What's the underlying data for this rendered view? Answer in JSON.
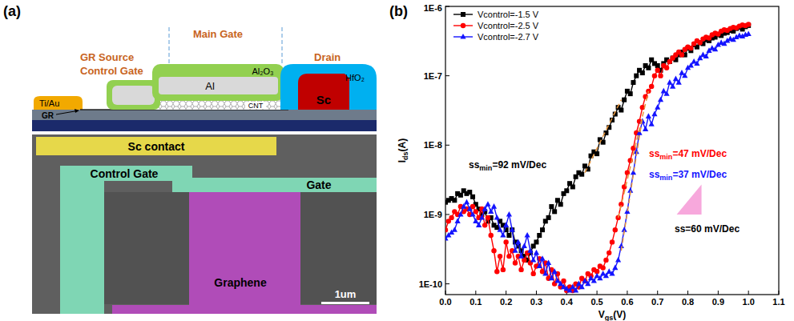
{
  "panel_a": {
    "label": "(a)",
    "schematic": {
      "main_gate": "Main Gate",
      "source_label": [
        "GR Source",
        "Control Gate"
      ],
      "drain": "Drain",
      "oxide": "Al₂O₃",
      "gate_metal": "Al",
      "channel": "CNT",
      "drain_oxide": "HfO₂",
      "drain_metal": "Sc",
      "source_metal": "Ti/Au",
      "graphene": "GR"
    },
    "sem": {
      "sc_contact": "Sc contact",
      "control_gate": "Control Gate",
      "gate": "Gate",
      "graphene": "Graphene",
      "scale_bar": "1um"
    }
  },
  "chart_data": {
    "type": "line",
    "panel_label": "(b)",
    "log": "y",
    "grid": false,
    "legend": "upper left",
    "x_label": [
      "V",
      "gs",
      "(V)"
    ],
    "y_label": [
      "I",
      "ds",
      "(A)"
    ],
    "xlim": [
      0,
      1.1
    ],
    "xticks": [
      {
        "value": 0,
        "label": "0.0"
      },
      0.1,
      0.2,
      0.3,
      0.4,
      0.5,
      0.6,
      0.7,
      0.8,
      0.9,
      {
        "value": 1,
        "label": "1.0"
      },
      1.1
    ],
    "ylim": [
      7e-11,
      1e-06
    ],
    "yticks": [
      {
        "value": 1e-10,
        "label": "1E-10"
      },
      {
        "value": 1e-09,
        "label": "1E-9"
      },
      {
        "value": 1e-08,
        "label": "1E-8"
      },
      {
        "value": 1e-07,
        "label": "1E-7"
      },
      {
        "value": 1e-06,
        "label": "1E-6"
      }
    ],
    "x": [
      0,
      0.01,
      0.02,
      0.03,
      0.04,
      0.05,
      0.06,
      0.07,
      0.08,
      0.09,
      0.1,
      0.11,
      0.12,
      0.13,
      0.14,
      0.15,
      0.16,
      0.17,
      0.18,
      0.19,
      0.2,
      0.21,
      0.22,
      0.23,
      0.24,
      0.25,
      0.26,
      0.27,
      0.28,
      0.29,
      0.3,
      0.31,
      0.32,
      0.33,
      0.34,
      0.35,
      0.36,
      0.37,
      0.38,
      0.39,
      0.4,
      0.41,
      0.42,
      0.43,
      0.44,
      0.45,
      0.46,
      0.47,
      0.48,
      0.49,
      0.5,
      0.51,
      0.52,
      0.53,
      0.54,
      0.55,
      0.56,
      0.57,
      0.58,
      0.59,
      0.6,
      0.61,
      0.62,
      0.63,
      0.64,
      0.65,
      0.66,
      0.67,
      0.68,
      0.69,
      0.7,
      0.71,
      0.72,
      0.73,
      0.74,
      0.75,
      0.76,
      0.77,
      0.78,
      0.79,
      0.8,
      0.81,
      0.82,
      0.83,
      0.84,
      0.85,
      0.86,
      0.87,
      0.88,
      0.89,
      0.9,
      0.91,
      0.92,
      0.93,
      0.94,
      0.95,
      0.96,
      0.97,
      0.98,
      0.99,
      1
    ],
    "series": [
      {
        "name": "Vcontrol=-1.5 V",
        "color": "#000000",
        "marker": "square",
        "line_style": "solid",
        "values": [
          1.5e-09,
          1.6e-09,
          1.7e-09,
          1.6e-09,
          2e-09,
          1.9e-09,
          2.2e-09,
          2e-09,
          2.1e-09,
          1.8e-09,
          1.4e-09,
          1.2e-09,
          1e-09,
          1.1e-09,
          8e-10,
          9e-10,
          7e-10,
          6.5e-10,
          8e-10,
          7e-10,
          6e-10,
          5e-10,
          6e-10,
          4e-10,
          3.5e-10,
          3e-10,
          2.5e-10,
          2.2e-10,
          2.8e-10,
          3.5e-10,
          4e-10,
          5e-10,
          6e-10,
          8e-10,
          9e-10,
          1.3e-09,
          1.1e-09,
          1.6e-09,
          1.4e-09,
          2e-09,
          2.2e-09,
          2.8e-09,
          2.5e-09,
          3.5e-09,
          4e-09,
          3.8e-09,
          5e-09,
          4.5e-09,
          7e-09,
          8e-09,
          7.5e-09,
          1.2e-08,
          1.1e-08,
          1.5e-08,
          1.8e-08,
          2.3e-08,
          2.8e-08,
          3.5e-08,
          3.2e-08,
          4.5e-08,
          6e-08,
          5.5e-08,
          8e-08,
          1e-07,
          1.2e-07,
          1.1e-07,
          1.4e-07,
          1.3e-07,
          1.7e-07,
          1.5e-07,
          1.4e-07,
          1.2e-07,
          1.5e-07,
          1.7e-07,
          1.6e-07,
          1.8e-07,
          1.7e-07,
          2e-07,
          2.2e-07,
          2e-07,
          2.5e-07,
          2.3e-07,
          2.8e-07,
          2.6e-07,
          3e-07,
          2.9e-07,
          3.3e-07,
          3.2e-07,
          3.5e-07,
          3.6e-07,
          3.9e-07,
          3.8e-07,
          4.1e-07,
          4.2e-07,
          4.5e-07,
          4.4e-07,
          4.8e-07,
          5e-07,
          4.7e-07,
          5.1e-07,
          5.3e-07
        ]
      },
      {
        "name": "Vcontrol=-2.5 V",
        "color": "#ff0000",
        "marker": "circle",
        "line_style": "solid",
        "values": [
          6e-10,
          8e-10,
          9e-10,
          1.1e-09,
          1e-09,
          1.3e-09,
          1.1e-09,
          1.2e-09,
          1e-09,
          1.3e-09,
          1.1e-09,
          9e-10,
          1.2e-09,
          7e-10,
          9e-10,
          5e-10,
          3e-10,
          1.5e-10,
          2.5e-10,
          1.6e-10,
          4e-10,
          2.5e-10,
          3e-10,
          2e-10,
          2.5e-10,
          1.6e-10,
          2.2e-10,
          2.8e-10,
          2e-10,
          1.4e-10,
          1.8e-10,
          2.3e-10,
          1.5e-10,
          2e-10,
          1.2e-10,
          1.6e-10,
          1e-10,
          1.4e-10,
          9e-11,
          1.1e-10,
          8e-11,
          9e-11,
          8e-11,
          1e-10,
          9e-11,
          1.2e-10,
          1.1e-10,
          1.4e-10,
          1.3e-10,
          1.6e-10,
          1.5e-10,
          1.8e-10,
          1.7e-10,
          2.2e-10,
          2.8e-10,
          4e-10,
          6e-10,
          9e-10,
          1.4e-09,
          2.5e-09,
          4e-09,
          6e-09,
          9e-09,
          1.5e-08,
          2.2e-08,
          3.5e-08,
          5e-08,
          6e-08,
          7e-08,
          1e-07,
          1.2e-07,
          1e-07,
          1.4e-07,
          1.3e-07,
          1.6e-07,
          1.8e-07,
          2e-07,
          2.2e-07,
          2e-07,
          2.4e-07,
          2.6e-07,
          2.5e-07,
          2.9e-07,
          3.2e-07,
          3e-07,
          3.4e-07,
          3.6e-07,
          3.5e-07,
          3.9e-07,
          4.1e-07,
          4e-07,
          4.4e-07,
          4.6e-07,
          4.5e-07,
          4.8e-07,
          5e-07,
          4.9e-07,
          5.2e-07,
          5.4e-07,
          5.3e-07,
          5.5e-07
        ]
      },
      {
        "name": "Vcontrol=-2.7 V",
        "color": "#1414ff",
        "marker": "triangle",
        "line_style": "solid",
        "values": [
          4.5e-10,
          5e-10,
          5.5e-10,
          6e-10,
          8e-10,
          1e-09,
          1.3e-09,
          1.5e-09,
          1.2e-09,
          1e-09,
          8e-10,
          7e-10,
          9e-10,
          1.2e-09,
          1.4e-09,
          1.1e-09,
          1.3e-09,
          9e-10,
          6e-10,
          5e-10,
          7e-10,
          1e-09,
          6e-10,
          3e-10,
          4e-10,
          2.5e-10,
          3.5e-10,
          5e-10,
          3e-10,
          2.2e-10,
          2.8e-10,
          1.8e-10,
          2.3e-10,
          1.4e-10,
          2e-10,
          1.2e-10,
          1.5e-10,
          1.1e-10,
          1e-10,
          9e-11,
          8.5e-11,
          8e-11,
          9e-11,
          8e-11,
          1e-10,
          9e-11,
          1.1e-10,
          1e-10,
          1.2e-10,
          1.1e-10,
          1.3e-10,
          1.2e-10,
          1.4e-10,
          1.3e-10,
          1.5e-10,
          1.4e-10,
          1.7e-10,
          2.2e-10,
          3.5e-10,
          6e-10,
          1.1e-09,
          2.2e-09,
          4e-09,
          8e-09,
          1.5e-08,
          2.2e-08,
          1.7e-08,
          2.6e-08,
          2e-08,
          2.8e-08,
          3.5e-08,
          4.5e-08,
          6e-08,
          5.5e-08,
          8e-08,
          7e-08,
          9e-08,
          8e-08,
          1.1e-07,
          1e-07,
          1.3e-07,
          1.4e-07,
          1.6e-07,
          1.5e-07,
          1.8e-07,
          2e-07,
          1.9e-07,
          2.3e-07,
          2.5e-07,
          2.4e-07,
          2.8e-07,
          3e-07,
          2.9e-07,
          3.2e-07,
          3.4e-07,
          3.3e-07,
          3.6e-07,
          3.8e-07,
          3.7e-07,
          3.9e-07,
          4e-07
        ]
      }
    ],
    "fit_lines": [
      {
        "x": [
          0.46,
          0.58
        ],
        "values": [
          4e-09,
          4.5e-08
        ],
        "color": "#e8963c",
        "line_style": "dashed"
      },
      {
        "x": [
          0.57,
          0.67
        ],
        "values": [
          9e-10,
          6e-08
        ],
        "color": "#e8963c",
        "line_style": "dashed"
      },
      {
        "x": [
          0.58,
          0.65
        ],
        "values": [
          3e-10,
          2.5e-08
        ],
        "color": "#e8963c",
        "line_style": "dashed"
      }
    ],
    "reference_triangle": {
      "x": [
        0.763,
        0.845
      ],
      "values": [
        1e-09,
        2.7e-09
      ],
      "color": "#f7a8dc"
    },
    "annotations": [
      {
        "text": [
          "ss",
          "min",
          "=92 mV/Dec"
        ],
        "color": "#000000"
      },
      {
        "text": [
          "ss",
          "min",
          "=47 mV/Dec"
        ],
        "color": "#ff0000"
      },
      {
        "text": [
          "ss",
          "min",
          "=37 mV/Dec"
        ],
        "color": "#1414ff"
      },
      {
        "text": "ss=60 mV/Dec",
        "color": "#000000"
      }
    ]
  }
}
